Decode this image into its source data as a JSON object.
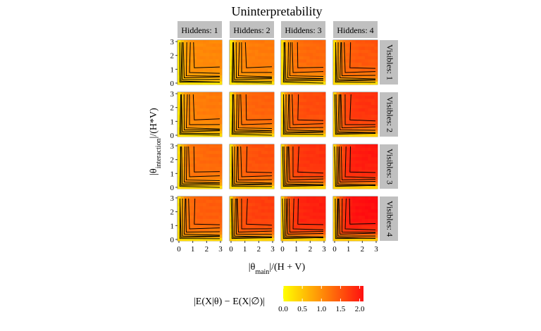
{
  "chart_data": {
    "type": "heatmap",
    "title": "Uninterpretability",
    "xlabel": {
      "base": "|θ",
      "sub": "main",
      "tail": "|/(H + V)"
    },
    "ylabel": {
      "base": "|θ",
      "sub": "interaction",
      "tail": "|/(H*V)"
    },
    "xlim": [
      0,
      3
    ],
    "ylim": [
      0,
      3
    ],
    "x_ticks": [
      "0",
      "1",
      "2",
      "3"
    ],
    "y_ticks": [
      "0",
      "1",
      "2",
      "3"
    ],
    "facet_cols": [
      "Hiddens: 1",
      "Hiddens: 2",
      "Hiddens: 3",
      "Hiddens: 4"
    ],
    "facet_rows": [
      "Visibles: 1",
      "Visibles: 2",
      "Visibles: 3",
      "Visibles: 4"
    ],
    "panel_max": [
      [
        1.0,
        1.1,
        1.25,
        1.4
      ],
      [
        1.1,
        1.3,
        1.5,
        1.7
      ],
      [
        1.25,
        1.45,
        1.7,
        1.9
      ],
      [
        1.35,
        1.6,
        1.85,
        2.0
      ]
    ],
    "legend": {
      "title": "|E(X|θ) − E(X|∅)|",
      "ticks": [
        "0.0",
        "0.5",
        "1.0",
        "1.5",
        "2.0"
      ],
      "tick_values": [
        0,
        0.5,
        1.0,
        1.5,
        2.0
      ],
      "range": [
        0,
        2.1
      ],
      "colors": [
        "#ffff00",
        "#ff0000"
      ],
      "placement": "bottom"
    },
    "grid": false
  }
}
